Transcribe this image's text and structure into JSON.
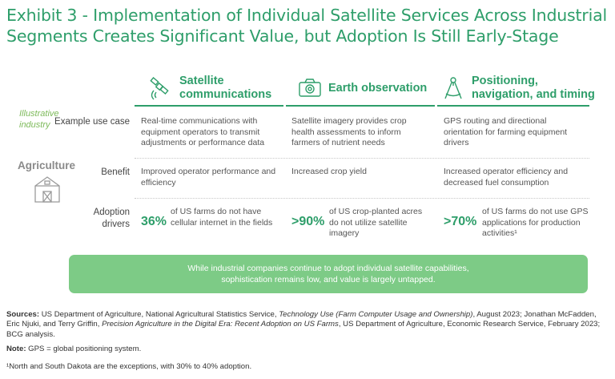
{
  "title": "Exhibit 3 - Implementation of Individual Satellite Services Across Industrial Segments Creates Significant Value, but Adoption Is Still Early-Stage",
  "columns": [
    {
      "icon": "satellite-icon",
      "label": "Satellite communications"
    },
    {
      "icon": "camera-icon",
      "label": "Earth observation"
    },
    {
      "icon": "compass-icon",
      "label": "Positioning, navigation, and timing"
    }
  ],
  "illustrative_label": "Illustrative industry",
  "industry": {
    "name": "Agriculture",
    "icon": "barn-icon"
  },
  "row_labels": {
    "example": "Example use case",
    "benefit": "Benefit",
    "adoption": "Adoption drivers"
  },
  "example": [
    "Real-time communications with equipment operators to transmit adjustments or performance data",
    "Satellite imagery provides crop health assessments to inform farmers of nutrient needs",
    "GPS routing and directional orientation for farming equipment drivers"
  ],
  "benefit": [
    "Improved operator performance and efficiency",
    "Increased crop yield",
    "Increased operator efficiency and decreased fuel consumption"
  ],
  "adoption": [
    {
      "stat": "36%",
      "text": "of US farms do not have cellular internet in the fields"
    },
    {
      "stat": ">90%",
      "text": "of US crop-planted acres do not utilize satellite imagery"
    },
    {
      "stat": ">70%",
      "text": "of US farms do not use GPS applications for production activities¹"
    }
  ],
  "banner": {
    "line1": "While industrial companies continue to adopt individual satellite capabilities,",
    "line2": "sophistication remains low, and value is largely untapped."
  },
  "sources": {
    "label": "Sources:",
    "t1": " US Department of Agriculture, National Agricultural Statistics Service, ",
    "t2": "Technology Use (Farm Computer Usage and Ownership)",
    "t3": ", August 2023; Jonathan McFadden, Eric Njuki, and Terry Griffin, ",
    "t4": "Precision Agriculture in the Digital Era: Recent Adoption on US Farms",
    "t5": ", US Department of Agriculture, Economic Research Service, February 2023; BCG analysis."
  },
  "note": {
    "label": "Note:",
    "text": " GPS = global positioning system."
  },
  "footnote": "¹North and South Dakota are the exceptions, with 30% to 40% adoption.",
  "colors": {
    "green": "#2e9e6a",
    "light_green": "#7dba5a",
    "banner": "#7dcb86"
  }
}
